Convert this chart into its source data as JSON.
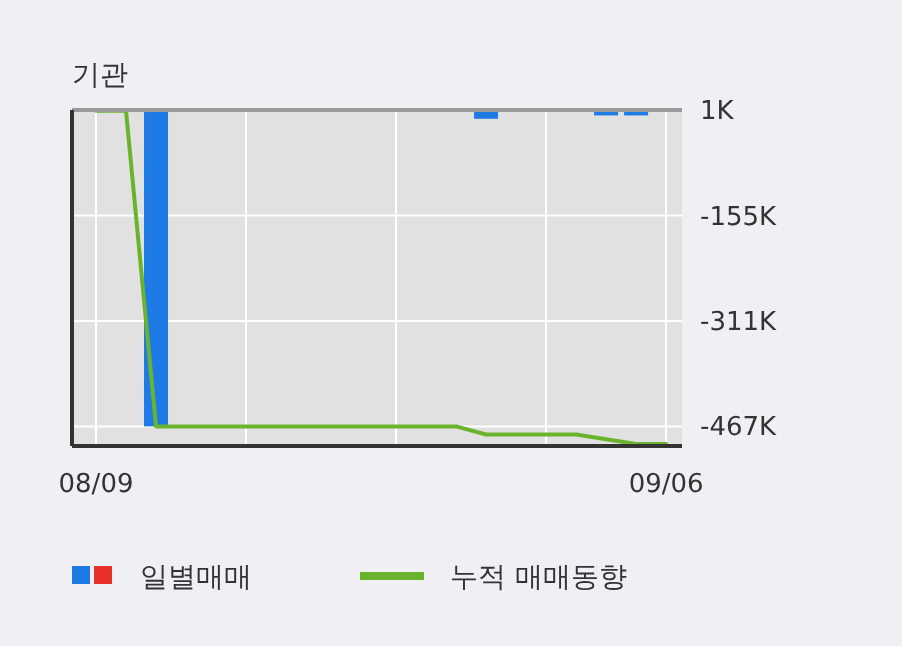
{
  "chart_data": {
    "type": "bar",
    "title": "기관",
    "categories": [
      "08/09",
      null,
      null,
      null,
      null,
      null,
      null,
      null,
      null,
      null,
      null,
      null,
      null,
      null,
      null,
      null,
      null,
      null,
      null,
      "09/06"
    ],
    "series": [
      {
        "name": "일별매매",
        "color": "#1e7be6",
        "values": [
          0,
          0,
          -467,
          0,
          0,
          0,
          0,
          0,
          0,
          0,
          0,
          0,
          0,
          -12,
          0,
          0,
          0,
          -7,
          -7,
          0
        ]
      },
      {
        "name": "누적 매매동향",
        "type": "line",
        "color": "#6ab42d",
        "values": [
          0,
          0,
          -467,
          -467,
          -467,
          -467,
          -467,
          -467,
          -467,
          -467,
          -467,
          -467,
          -467,
          -479,
          -479,
          -479,
          -479,
          -486,
          -493,
          -493
        ]
      }
    ],
    "ylim": [
      -496,
      1
    ],
    "yticks": [
      {
        "value": 1,
        "label": "1K"
      },
      {
        "value": -155,
        "label": "-155K"
      },
      {
        "value": -311,
        "label": "-311K"
      },
      {
        "value": -467,
        "label": "-467K"
      }
    ],
    "grid": true,
    "legend": "bottom"
  }
}
